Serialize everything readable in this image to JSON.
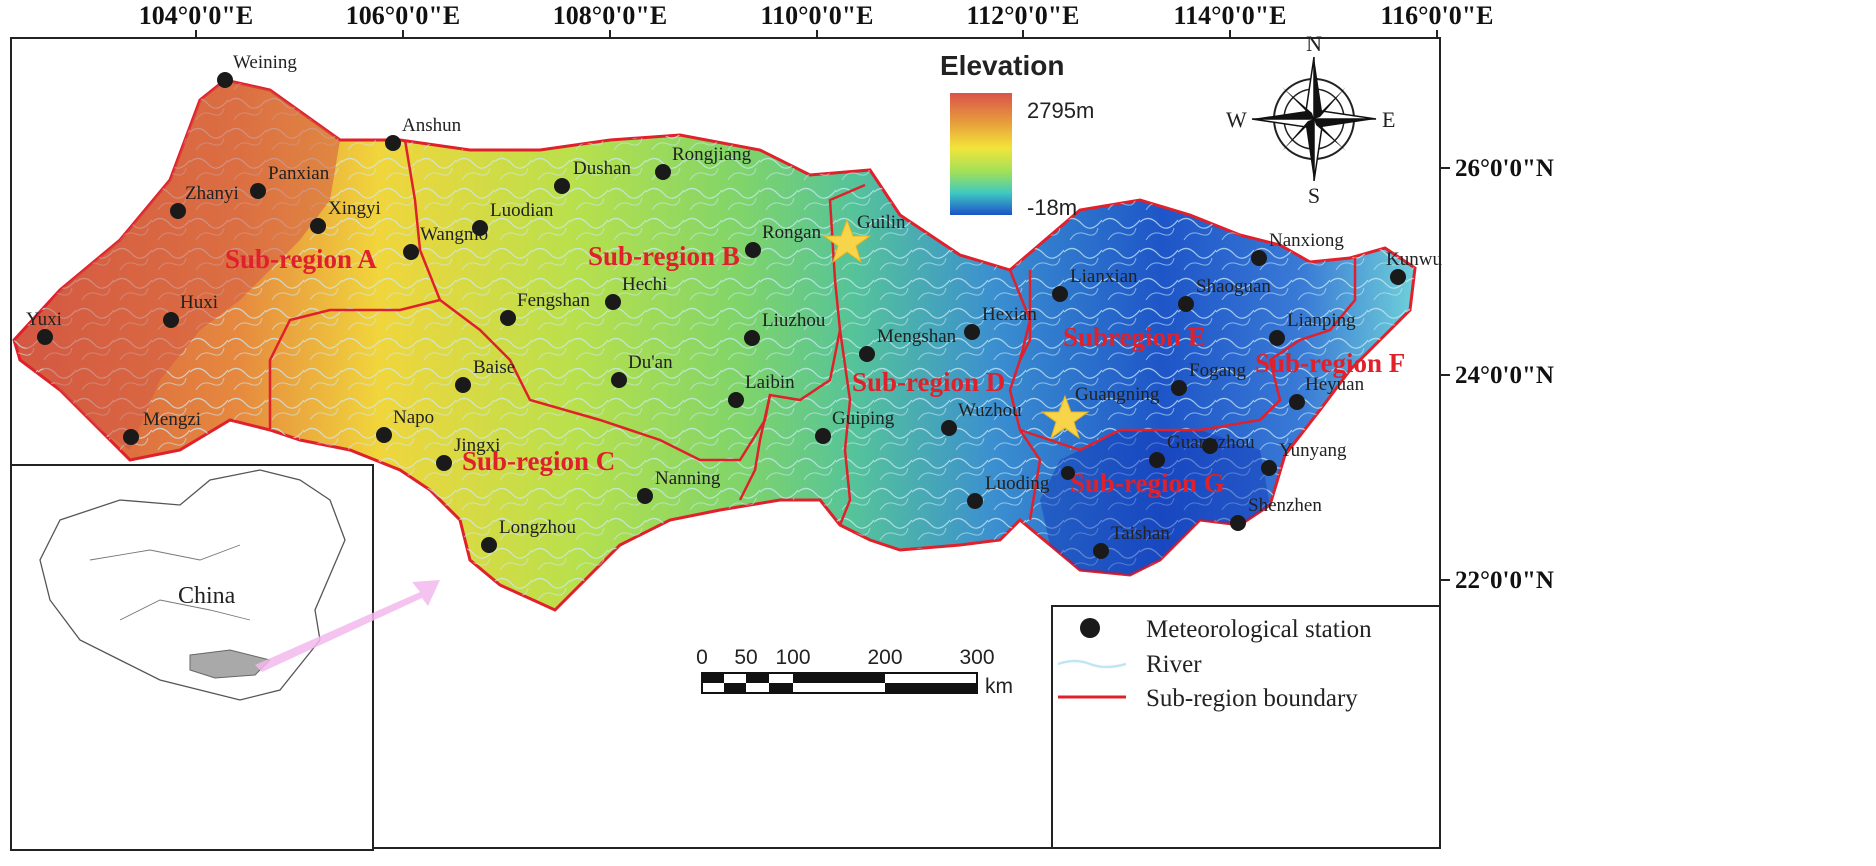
{
  "axes": {
    "longitudes": [
      "104°0'0\"E",
      "106°0'0\"E",
      "108°0'0\"E",
      "110°0'0\"E",
      "112°0'0\"E",
      "114°0'0\"E",
      "116°0'0\"E"
    ],
    "latitudes": [
      "26°0'0\"N",
      "24°0'0\"N",
      "22°0'0\"N"
    ]
  },
  "elevation_legend": {
    "title": "Elevation",
    "max": "2795m",
    "min": "-18m",
    "colors": [
      "#d9534a",
      "#e8a03c",
      "#f2e43a",
      "#9fe05a",
      "#3fc9c0",
      "#1b52c8"
    ]
  },
  "compass": {
    "n": "N",
    "s": "S",
    "e": "E",
    "w": "W"
  },
  "subregions": [
    "Sub-region A",
    "Sub-region B",
    "Sub-region C",
    "Sub-region D",
    "Subregion E",
    "Sub-region F",
    "Sub-region G"
  ],
  "stations": [
    "Weining",
    "Anshun",
    "Panxian",
    "Zhanyi",
    "Xingyi",
    "Wangmo",
    "Luodian",
    "Dushan",
    "Rongjiang",
    "Rongan",
    "Guilin",
    "Hechi",
    "Fengshan",
    "Du'an",
    "Liuzhou",
    "Baise",
    "Napo",
    "Jingxi",
    "Laibin",
    "Guiping",
    "Nanning",
    "Longzhou",
    "Mengshan",
    "Hexian",
    "Wuzhou",
    "Luoding",
    "Lianxian",
    "Shaoguan",
    "Nanxiong",
    "Lianping",
    "Fogang",
    "Guangning",
    "Heyuan",
    "Guangzhou",
    "Yunyang",
    "Shenzhen",
    "Taishan",
    "Lianping",
    "Yuxi",
    "Huxi",
    "Mengzi",
    "Kunwu"
  ],
  "inset": {
    "label": "China"
  },
  "scale_bar": {
    "ticks": [
      "0",
      "50",
      "100",
      "200",
      "300"
    ],
    "unit": "km"
  },
  "legend": {
    "station": "Meteorological station",
    "river": "River",
    "boundary": "Sub-region boundary"
  },
  "colors": {
    "boundary": "#e0202a",
    "river": "#bfe6f2",
    "station": "#1a1a1a",
    "star": "#f7d44a"
  }
}
